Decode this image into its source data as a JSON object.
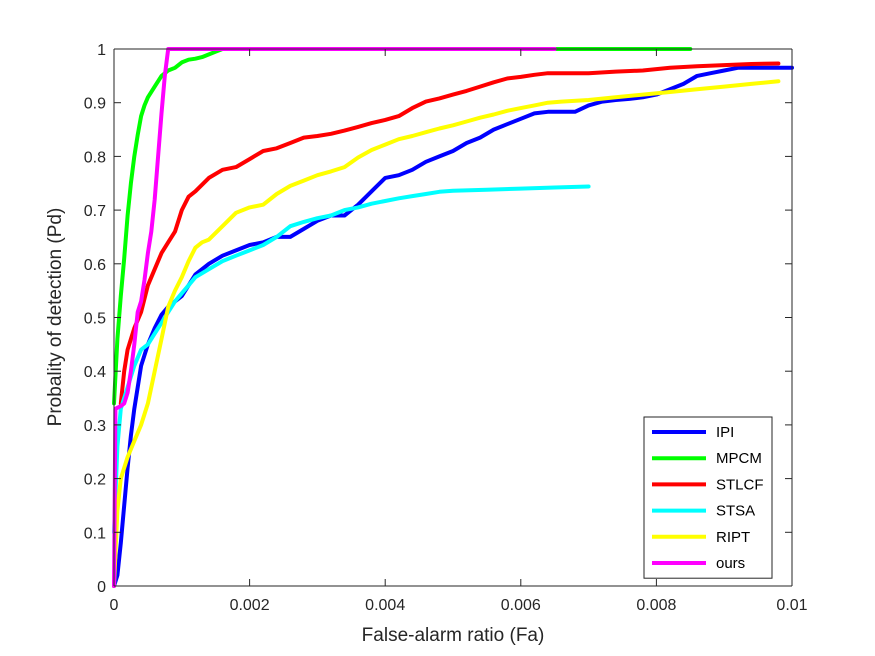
{
  "chart_data": {
    "type": "line",
    "title": "",
    "xlabel": "False-alarm ratio (Fa)",
    "ylabel": "Probality of detection (Pd)",
    "xlim": [
      0,
      0.01
    ],
    "ylim": [
      0,
      1
    ],
    "xticks": [
      0,
      0.002,
      0.004,
      0.006,
      0.008,
      0.01
    ],
    "xtick_labels": [
      "0",
      "0.002",
      "0.004",
      "0.006",
      "0.008",
      "0.01"
    ],
    "yticks": [
      0,
      0.1,
      0.2,
      0.3,
      0.4,
      0.5,
      0.6,
      0.7,
      0.8,
      0.9,
      1
    ],
    "ytick_labels": [
      "0",
      "0.1",
      "0.2",
      "0.3",
      "0.4",
      "0.5",
      "0.6",
      "0.7",
      "0.8",
      "0.9",
      "1"
    ],
    "grid": false,
    "legend_position": "bottom-right",
    "series": [
      {
        "name": "IPI",
        "color": "#0000ff",
        "points": [
          [
            0,
            0
          ],
          [
            5e-05,
            0.02
          ],
          [
            0.0001,
            0.08
          ],
          [
            0.00015,
            0.15
          ],
          [
            0.0002,
            0.22
          ],
          [
            0.00025,
            0.28
          ],
          [
            0.0003,
            0.33
          ],
          [
            0.00035,
            0.37
          ],
          [
            0.0004,
            0.41
          ],
          [
            0.0005,
            0.45
          ],
          [
            0.0006,
            0.48
          ],
          [
            0.0007,
            0.505
          ],
          [
            0.0008,
            0.52
          ],
          [
            0.0009,
            0.53
          ],
          [
            0.001,
            0.54
          ],
          [
            0.0011,
            0.56
          ],
          [
            0.0012,
            0.58
          ],
          [
            0.0014,
            0.6
          ],
          [
            0.0016,
            0.615
          ],
          [
            0.0018,
            0.625
          ],
          [
            0.002,
            0.635
          ],
          [
            0.0022,
            0.64
          ],
          [
            0.0024,
            0.65
          ],
          [
            0.0026,
            0.65
          ],
          [
            0.0028,
            0.665
          ],
          [
            0.003,
            0.68
          ],
          [
            0.0032,
            0.69
          ],
          [
            0.0034,
            0.69
          ],
          [
            0.0036,
            0.71
          ],
          [
            0.0038,
            0.735
          ],
          [
            0.004,
            0.76
          ],
          [
            0.0042,
            0.765
          ],
          [
            0.0044,
            0.775
          ],
          [
            0.0046,
            0.79
          ],
          [
            0.0048,
            0.8
          ],
          [
            0.005,
            0.81
          ],
          [
            0.0052,
            0.825
          ],
          [
            0.0054,
            0.835
          ],
          [
            0.0056,
            0.85
          ],
          [
            0.0058,
            0.86
          ],
          [
            0.006,
            0.87
          ],
          [
            0.0062,
            0.88
          ],
          [
            0.0064,
            0.883
          ],
          [
            0.0066,
            0.883
          ],
          [
            0.0068,
            0.883
          ],
          [
            0.007,
            0.895
          ],
          [
            0.0072,
            0.902
          ],
          [
            0.0074,
            0.905
          ],
          [
            0.0076,
            0.907
          ],
          [
            0.0078,
            0.91
          ],
          [
            0.008,
            0.915
          ],
          [
            0.0082,
            0.925
          ],
          [
            0.0084,
            0.935
          ],
          [
            0.0086,
            0.95
          ],
          [
            0.0088,
            0.955
          ],
          [
            0.009,
            0.96
          ],
          [
            0.0092,
            0.965
          ],
          [
            0.0094,
            0.965
          ],
          [
            0.0096,
            0.965
          ],
          [
            0.0098,
            0.965
          ],
          [
            0.01,
            0.965
          ]
        ]
      },
      {
        "name": "MPCM",
        "color": "#00ff00",
        "points": [
          [
            0,
            0.34
          ],
          [
            5e-05,
            0.46
          ],
          [
            0.0001,
            0.54
          ],
          [
            0.00015,
            0.61
          ],
          [
            0.0002,
            0.69
          ],
          [
            0.00025,
            0.75
          ],
          [
            0.0003,
            0.8
          ],
          [
            0.00035,
            0.84
          ],
          [
            0.0004,
            0.875
          ],
          [
            0.00045,
            0.895
          ],
          [
            0.0005,
            0.91
          ],
          [
            0.0006,
            0.93
          ],
          [
            0.0007,
            0.95
          ],
          [
            0.0008,
            0.96
          ],
          [
            0.0009,
            0.965
          ],
          [
            0.001,
            0.975
          ],
          [
            0.0011,
            0.98
          ],
          [
            0.0012,
            0.982
          ],
          [
            0.0013,
            0.985
          ],
          [
            0.0014,
            0.99
          ],
          [
            0.0015,
            0.995
          ],
          [
            0.0016,
            1
          ],
          [
            0.002,
            1
          ],
          [
            0.004,
            1
          ],
          [
            0.006,
            1
          ],
          [
            0.0085,
            1
          ]
        ]
      },
      {
        "name": "STLCF",
        "color": "#ff0000",
        "points": [
          [
            0.0001,
            0.34
          ],
          [
            0.00015,
            0.4
          ],
          [
            0.0002,
            0.44
          ],
          [
            0.0003,
            0.48
          ],
          [
            0.0004,
            0.51
          ],
          [
            0.0005,
            0.56
          ],
          [
            0.0006,
            0.59
          ],
          [
            0.0007,
            0.62
          ],
          [
            0.0008,
            0.64
          ],
          [
            0.0009,
            0.66
          ],
          [
            0.001,
            0.7
          ],
          [
            0.0011,
            0.725
          ],
          [
            0.0012,
            0.735
          ],
          [
            0.0014,
            0.76
          ],
          [
            0.0016,
            0.775
          ],
          [
            0.0018,
            0.78
          ],
          [
            0.002,
            0.795
          ],
          [
            0.0022,
            0.81
          ],
          [
            0.0024,
            0.815
          ],
          [
            0.0026,
            0.825
          ],
          [
            0.0028,
            0.835
          ],
          [
            0.003,
            0.838
          ],
          [
            0.0032,
            0.842
          ],
          [
            0.0034,
            0.848
          ],
          [
            0.0036,
            0.855
          ],
          [
            0.0038,
            0.862
          ],
          [
            0.004,
            0.868
          ],
          [
            0.0042,
            0.875
          ],
          [
            0.0044,
            0.89
          ],
          [
            0.0046,
            0.902
          ],
          [
            0.0048,
            0.908
          ],
          [
            0.005,
            0.915
          ],
          [
            0.0052,
            0.922
          ],
          [
            0.0054,
            0.93
          ],
          [
            0.0056,
            0.938
          ],
          [
            0.0058,
            0.945
          ],
          [
            0.006,
            0.948
          ],
          [
            0.0062,
            0.952
          ],
          [
            0.0064,
            0.955
          ],
          [
            0.0066,
            0.955
          ],
          [
            0.007,
            0.955
          ],
          [
            0.0074,
            0.958
          ],
          [
            0.0078,
            0.96
          ],
          [
            0.0082,
            0.965
          ],
          [
            0.0086,
            0.968
          ],
          [
            0.009,
            0.97
          ],
          [
            0.0094,
            0.972
          ],
          [
            0.0098,
            0.973
          ]
        ]
      },
      {
        "name": "STSA",
        "color": "#00ffff",
        "points": [
          [
            0,
            0.1
          ],
          [
            5e-05,
            0.26
          ],
          [
            0.0001,
            0.33
          ],
          [
            0.0002,
            0.37
          ],
          [
            0.0003,
            0.41
          ],
          [
            0.0004,
            0.44
          ],
          [
            0.0005,
            0.45
          ],
          [
            0.0006,
            0.47
          ],
          [
            0.0007,
            0.49
          ],
          [
            0.0008,
            0.51
          ],
          [
            0.0009,
            0.53
          ],
          [
            0.001,
            0.545
          ],
          [
            0.0011,
            0.56
          ],
          [
            0.0012,
            0.575
          ],
          [
            0.0014,
            0.59
          ],
          [
            0.0016,
            0.605
          ],
          [
            0.0018,
            0.615
          ],
          [
            0.002,
            0.625
          ],
          [
            0.0022,
            0.635
          ],
          [
            0.0024,
            0.65
          ],
          [
            0.0026,
            0.67
          ],
          [
            0.0028,
            0.678
          ],
          [
            0.003,
            0.685
          ],
          [
            0.0032,
            0.69
          ],
          [
            0.0034,
            0.7
          ],
          [
            0.0036,
            0.705
          ],
          [
            0.0038,
            0.712
          ],
          [
            0.004,
            0.717
          ],
          [
            0.0042,
            0.722
          ],
          [
            0.0044,
            0.726
          ],
          [
            0.0046,
            0.73
          ],
          [
            0.0048,
            0.734
          ],
          [
            0.005,
            0.736
          ],
          [
            0.0055,
            0.738
          ],
          [
            0.006,
            0.74
          ],
          [
            0.0065,
            0.742
          ],
          [
            0.007,
            0.744
          ]
        ]
      },
      {
        "name": "RIPT",
        "color": "#ffff00",
        "points": [
          [
            0,
            0
          ],
          [
            5e-05,
            0.14
          ],
          [
            0.0001,
            0.2
          ],
          [
            0.0002,
            0.24
          ],
          [
            0.0003,
            0.27
          ],
          [
            0.0004,
            0.3
          ],
          [
            0.0005,
            0.34
          ],
          [
            0.0006,
            0.4
          ],
          [
            0.0007,
            0.46
          ],
          [
            0.0008,
            0.52
          ],
          [
            0.0009,
            0.55
          ],
          [
            0.001,
            0.575
          ],
          [
            0.0011,
            0.605
          ],
          [
            0.0012,
            0.63
          ],
          [
            0.0013,
            0.64
          ],
          [
            0.0014,
            0.645
          ],
          [
            0.0016,
            0.67
          ],
          [
            0.0018,
            0.695
          ],
          [
            0.002,
            0.705
          ],
          [
            0.0022,
            0.71
          ],
          [
            0.0024,
            0.73
          ],
          [
            0.0026,
            0.745
          ],
          [
            0.0028,
            0.755
          ],
          [
            0.003,
            0.765
          ],
          [
            0.0032,
            0.772
          ],
          [
            0.0034,
            0.78
          ],
          [
            0.0036,
            0.798
          ],
          [
            0.0038,
            0.812
          ],
          [
            0.004,
            0.822
          ],
          [
            0.0042,
            0.832
          ],
          [
            0.0044,
            0.838
          ],
          [
            0.0046,
            0.845
          ],
          [
            0.0048,
            0.852
          ],
          [
            0.005,
            0.858
          ],
          [
            0.0052,
            0.865
          ],
          [
            0.0054,
            0.872
          ],
          [
            0.0056,
            0.878
          ],
          [
            0.0058,
            0.885
          ],
          [
            0.006,
            0.89
          ],
          [
            0.0062,
            0.895
          ],
          [
            0.0064,
            0.9
          ],
          [
            0.0066,
            0.902
          ],
          [
            0.007,
            0.905
          ],
          [
            0.0074,
            0.91
          ],
          [
            0.0078,
            0.915
          ],
          [
            0.0082,
            0.92
          ],
          [
            0.0086,
            0.925
          ],
          [
            0.009,
            0.93
          ],
          [
            0.0094,
            0.935
          ],
          [
            0.0098,
            0.94
          ]
        ]
      },
      {
        "name": "ours",
        "color": "#ff00ff",
        "points": [
          [
            0,
            0
          ],
          [
            2e-05,
            0.33
          ],
          [
            0.0001,
            0.335
          ],
          [
            0.00015,
            0.34
          ],
          [
            0.0002,
            0.36
          ],
          [
            0.00025,
            0.4
          ],
          [
            0.0003,
            0.45
          ],
          [
            0.00035,
            0.51
          ],
          [
            0.0004,
            0.53
          ],
          [
            0.00045,
            0.57
          ],
          [
            0.0005,
            0.62
          ],
          [
            0.00055,
            0.66
          ],
          [
            0.0006,
            0.72
          ],
          [
            0.00065,
            0.8
          ],
          [
            0.0007,
            0.88
          ],
          [
            0.00075,
            0.95
          ],
          [
            0.0008,
            1
          ],
          [
            0.002,
            1
          ],
          [
            0.004,
            1
          ],
          [
            0.0065,
            1
          ]
        ]
      }
    ]
  }
}
